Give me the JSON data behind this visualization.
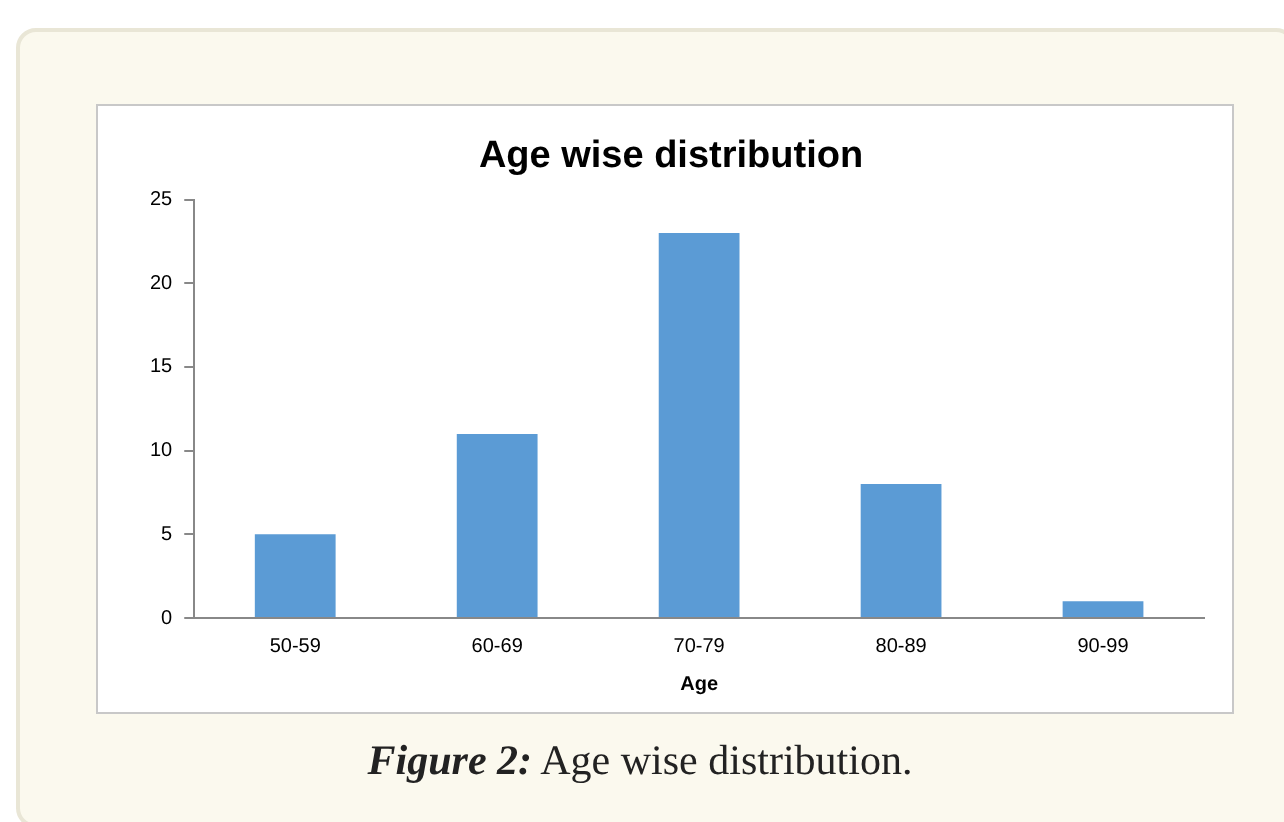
{
  "chart_data": {
    "type": "bar",
    "title": "Age wise distribution",
    "xlabel": "Age",
    "categories": [
      "50-59",
      "60-69",
      "70-79",
      "80-89",
      "90-99"
    ],
    "values": [
      5,
      11,
      23,
      8,
      1
    ],
    "color": "#5b9bd5",
    "ylim": [
      0,
      25
    ],
    "yticks": [
      0,
      5,
      10,
      15,
      20,
      25
    ],
    "grid": false,
    "legend": false,
    "annotations": [
      "Figure 2: Age wise distribution."
    ]
  }
}
